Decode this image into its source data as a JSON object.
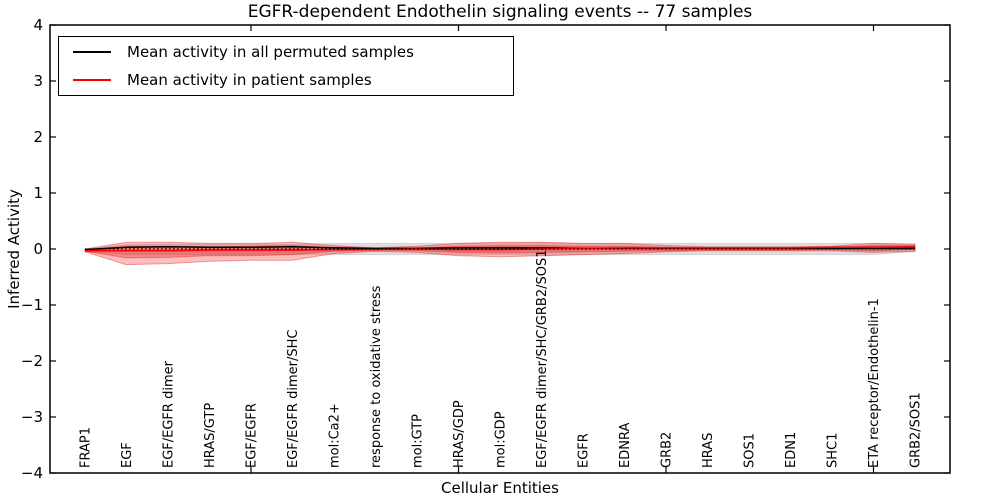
{
  "title": "EGFR-dependent Endothelin signaling events -- 77 samples",
  "legend": {
    "items": [
      {
        "label": "Mean activity in all permuted samples",
        "color": "#000000"
      },
      {
        "label": "Mean activity in patient samples",
        "color": "#ff0000"
      }
    ],
    "position": "upper left"
  },
  "chart_data": {
    "type": "area",
    "title": "EGFR-dependent Endothelin signaling events -- 77 samples",
    "xlabel": "Cellular Entities",
    "ylabel": "Inferred Activity",
    "ylim": [
      -4,
      4
    ],
    "yticks": [
      4,
      3,
      2,
      1,
      0,
      -1,
      -2,
      -3,
      -4
    ],
    "x_major_tick_positions": [
      5,
      10,
      15,
      20
    ],
    "grid": false,
    "zero_line": 0,
    "categories": [
      "FRAP1",
      "EGF",
      "EGF/EGFR dimer",
      "HRAS/GTP",
      "EGF/EGFR",
      "EGF/EGFR dimer/SHC",
      "mol:Ca2+",
      "response to oxidative stress",
      "mol:GTP",
      "HRAS/GDP",
      "mol:GDP",
      "EGF/EGFR dimer/SHC/GRB2/SOS1",
      "EGFR",
      "EDNRA",
      "GRB2",
      "HRAS",
      "SOS1",
      "EDN1",
      "SHC1",
      "ETA receptor/Endothelin-1",
      "GRB2/SOS1"
    ],
    "series": [
      {
        "name": "Mean activity in all permuted samples",
        "color": "#000000",
        "values": [
          -0.01,
          0.03,
          0.04,
          0.03,
          0.03,
          0.04,
          0.02,
          0.01,
          0.01,
          0.02,
          0.02,
          0.02,
          0.01,
          0.01,
          0.01,
          0.01,
          0.01,
          0.01,
          0.01,
          0.01,
          0.01
        ]
      },
      {
        "name": "Mean activity in patient samples",
        "color": "#ff0000",
        "values": [
          -0.03,
          -0.03,
          -0.03,
          -0.02,
          -0.02,
          -0.02,
          -0.01,
          -0.01,
          0.0,
          -0.01,
          -0.01,
          0.0,
          0.01,
          0.02,
          0.02,
          0.02,
          0.02,
          0.02,
          0.03,
          0.03,
          0.04
        ]
      }
    ],
    "bands": [
      {
        "name": "permuted-sample-range",
        "color": "rgba(0,0,0,0.13)",
        "edge": "rgba(0,0,0,0.10)",
        "upper": [
          0.0,
          0.08,
          0.09,
          0.09,
          0.09,
          0.09,
          0.1,
          0.1,
          0.1,
          0.1,
          0.1,
          0.11,
          0.1,
          0.1,
          0.1,
          0.1,
          0.1,
          0.1,
          0.1,
          0.1,
          0.08
        ],
        "lower": [
          -0.05,
          -0.1,
          -0.1,
          -0.1,
          -0.1,
          -0.1,
          -0.1,
          -0.1,
          -0.1,
          -0.1,
          -0.1,
          -0.11,
          -0.1,
          -0.1,
          -0.1,
          -0.1,
          -0.1,
          -0.1,
          -0.1,
          -0.1,
          -0.05
        ]
      },
      {
        "name": "patient-sample-spread-outer",
        "color": "rgba(255,40,40,0.30)",
        "edge": "rgba(210,0,0,0.35)",
        "upper": [
          0.0,
          0.12,
          0.12,
          0.1,
          0.1,
          0.12,
          0.06,
          0.02,
          0.05,
          0.1,
          0.12,
          0.12,
          0.1,
          0.1,
          0.06,
          0.04,
          0.04,
          0.04,
          0.05,
          0.1,
          0.09
        ],
        "lower": [
          -0.05,
          -0.28,
          -0.26,
          -0.22,
          -0.2,
          -0.2,
          -0.08,
          -0.04,
          -0.06,
          -0.12,
          -0.14,
          -0.12,
          -0.1,
          -0.08,
          -0.05,
          -0.03,
          -0.03,
          -0.03,
          -0.03,
          -0.06,
          -0.04
        ]
      },
      {
        "name": "patient-sample-spread-inner",
        "color": "rgba(230,30,30,0.35)",
        "edge": "rgba(210,0,0,0.30)",
        "upper": [
          -0.01,
          0.05,
          0.05,
          0.04,
          0.05,
          0.06,
          0.03,
          0.01,
          0.02,
          0.05,
          0.06,
          0.06,
          0.05,
          0.05,
          0.03,
          0.02,
          0.02,
          0.02,
          0.03,
          0.06,
          0.06
        ],
        "lower": [
          -0.04,
          -0.16,
          -0.15,
          -0.12,
          -0.12,
          -0.1,
          -0.04,
          -0.02,
          -0.03,
          -0.06,
          -0.07,
          -0.06,
          -0.05,
          -0.04,
          -0.03,
          -0.02,
          -0.02,
          -0.02,
          -0.01,
          -0.03,
          -0.01
        ]
      }
    ]
  }
}
